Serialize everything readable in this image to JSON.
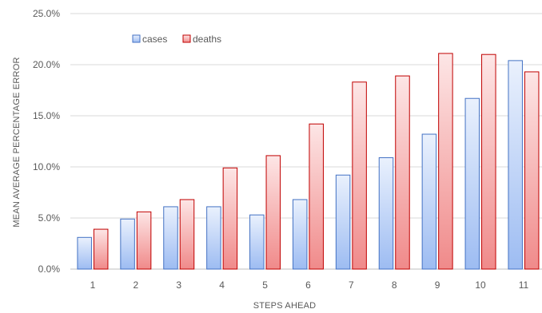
{
  "chart_data": {
    "type": "bar",
    "title": "",
    "xlabel": "STEPS AHEAD",
    "ylabel": "MEAN AVERAGE PERCENTAGE ERROR",
    "categories": [
      "1",
      "2",
      "3",
      "4",
      "5",
      "6",
      "7",
      "8",
      "9",
      "10",
      "11"
    ],
    "series": [
      {
        "name": "cases",
        "values": [
          3.1,
          4.9,
          6.1,
          6.1,
          5.3,
          6.8,
          9.2,
          10.9,
          13.2,
          16.7,
          20.4
        ],
        "color": "#9dbcf2"
      },
      {
        "name": "deaths",
        "values": [
          3.9,
          5.6,
          6.8,
          9.9,
          11.1,
          14.2,
          18.3,
          18.9,
          21.1,
          21.0,
          19.3
        ],
        "color": "#f08a8a"
      }
    ],
    "ylim": [
      0,
      25
    ],
    "yticks": [
      "0.0%",
      "5.0%",
      "10.0%",
      "15.0%",
      "20.0%",
      "25.0%"
    ],
    "grid": true,
    "legend": "top-left"
  }
}
